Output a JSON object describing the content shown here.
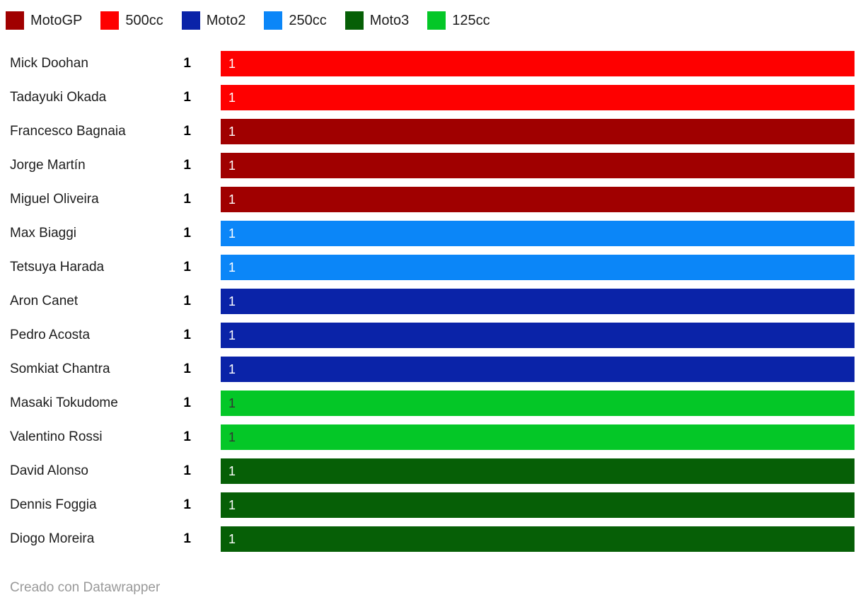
{
  "legend": {
    "items": [
      {
        "label": "MotoGP",
        "color": "#a00000"
      },
      {
        "label": "500cc",
        "color": "#fe0000"
      },
      {
        "label": "Moto2",
        "color": "#0a23a8"
      },
      {
        "label": "250cc",
        "color": "#0b86f8"
      },
      {
        "label": "Moto3",
        "color": "#065f06"
      },
      {
        "label": "125cc",
        "color": "#04c727"
      }
    ]
  },
  "chart_data": {
    "type": "bar",
    "orientation": "horizontal",
    "title": "",
    "xlabel": "",
    "ylabel": "",
    "xlim": [
      0,
      1
    ],
    "grid": false,
    "legend_position": "top",
    "categories": [
      "Mick Doohan",
      "Tadayuki Okada",
      "Francesco Bagnaia",
      "Jorge Martín",
      "Miguel Oliveira",
      "Max Biaggi",
      "Tetsuya Harada",
      "Aron Canet",
      "Pedro Acosta",
      "Somkiat Chantra",
      "Masaki Tokudome",
      "Valentino Rossi",
      "David Alonso",
      "Dennis Foggia",
      "Diogo Moreira"
    ],
    "values": [
      1,
      1,
      1,
      1,
      1,
      1,
      1,
      1,
      1,
      1,
      1,
      1,
      1,
      1,
      1
    ],
    "rows": [
      {
        "name": "Mick Doohan",
        "value": "1",
        "bar_label": "1",
        "class": "500cc",
        "color": "#fe0000",
        "label_color": "#ffffff"
      },
      {
        "name": "Tadayuki Okada",
        "value": "1",
        "bar_label": "1",
        "class": "500cc",
        "color": "#fe0000",
        "label_color": "#ffffff"
      },
      {
        "name": "Francesco Bagnaia",
        "value": "1",
        "bar_label": "1",
        "class": "MotoGP",
        "color": "#a00000",
        "label_color": "#ffffff"
      },
      {
        "name": "Jorge Martín",
        "value": "1",
        "bar_label": "1",
        "class": "MotoGP",
        "color": "#a00000",
        "label_color": "#ffffff"
      },
      {
        "name": "Miguel Oliveira",
        "value": "1",
        "bar_label": "1",
        "class": "MotoGP",
        "color": "#a00000",
        "label_color": "#ffffff"
      },
      {
        "name": "Max Biaggi",
        "value": "1",
        "bar_label": "1",
        "class": "250cc",
        "color": "#0b86f8",
        "label_color": "#ffffff"
      },
      {
        "name": "Tetsuya Harada",
        "value": "1",
        "bar_label": "1",
        "class": "250cc",
        "color": "#0b86f8",
        "label_color": "#ffffff"
      },
      {
        "name": "Aron Canet",
        "value": "1",
        "bar_label": "1",
        "class": "Moto2",
        "color": "#0a23a8",
        "label_color": "#ffffff"
      },
      {
        "name": "Pedro Acosta",
        "value": "1",
        "bar_label": "1",
        "class": "Moto2",
        "color": "#0a23a8",
        "label_color": "#ffffff"
      },
      {
        "name": "Somkiat Chantra",
        "value": "1",
        "bar_label": "1",
        "class": "Moto2",
        "color": "#0a23a8",
        "label_color": "#ffffff"
      },
      {
        "name": "Masaki Tokudome",
        "value": "1",
        "bar_label": "1",
        "class": "125cc",
        "color": "#04c727",
        "label_color": "#333333"
      },
      {
        "name": "Valentino Rossi",
        "value": "1",
        "bar_label": "1",
        "class": "125cc",
        "color": "#04c727",
        "label_color": "#333333"
      },
      {
        "name": "David Alonso",
        "value": "1",
        "bar_label": "1",
        "class": "Moto3",
        "color": "#065f06",
        "label_color": "#ffffff"
      },
      {
        "name": "Dennis Foggia",
        "value": "1",
        "bar_label": "1",
        "class": "Moto3",
        "color": "#065f06",
        "label_color": "#ffffff"
      },
      {
        "name": "Diogo Moreira",
        "value": "1",
        "bar_label": "1",
        "class": "Moto3",
        "color": "#065f06",
        "label_color": "#ffffff"
      }
    ]
  },
  "footer": {
    "credit": "Creado con Datawrapper"
  }
}
